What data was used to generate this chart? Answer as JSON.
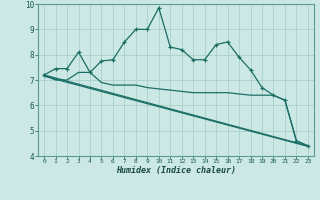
{
  "xlabel": "Humidex (Indice chaleur)",
  "ylabel": "",
  "bg_color": "#cce8e4",
  "grid_color": "#aacfcb",
  "line_color": "#1a6e65",
  "xlim": [
    -0.5,
    23.5
  ],
  "ylim": [
    4,
    10
  ],
  "xticks": [
    0,
    1,
    2,
    3,
    4,
    5,
    6,
    7,
    8,
    9,
    10,
    11,
    12,
    13,
    14,
    15,
    16,
    17,
    18,
    19,
    20,
    21,
    22,
    23
  ],
  "yticks": [
    4,
    5,
    6,
    7,
    8,
    9,
    10
  ],
  "curve1_x": [
    0,
    1,
    2,
    3,
    4,
    5,
    6,
    7,
    8,
    9,
    10,
    11,
    12,
    13,
    14,
    15,
    16,
    17,
    18,
    19,
    20,
    21,
    22,
    23
  ],
  "curve1_y": [
    7.2,
    7.45,
    7.45,
    8.1,
    7.3,
    7.75,
    7.8,
    8.5,
    9.0,
    9.0,
    9.85,
    8.3,
    8.2,
    7.8,
    7.8,
    8.4,
    8.5,
    7.9,
    7.4,
    6.7,
    6.4,
    6.2,
    4.6,
    4.4
  ],
  "curve2_x": [
    0,
    1,
    2,
    3,
    4,
    5,
    6,
    7,
    8,
    9,
    10,
    11,
    12,
    13,
    14,
    15,
    16,
    17,
    18,
    19,
    20,
    21,
    22,
    23
  ],
  "curve2_y": [
    7.2,
    7.0,
    7.0,
    7.3,
    7.3,
    6.9,
    6.8,
    6.8,
    6.8,
    6.7,
    6.65,
    6.6,
    6.55,
    6.5,
    6.5,
    6.5,
    6.5,
    6.45,
    6.4,
    6.4,
    6.4,
    6.2,
    4.6,
    4.4
  ],
  "curve3_x": [
    0,
    23
  ],
  "curve3_y": [
    7.2,
    4.4
  ],
  "curve4_x": [
    0,
    23
  ],
  "curve4_y": [
    7.15,
    4.38
  ]
}
